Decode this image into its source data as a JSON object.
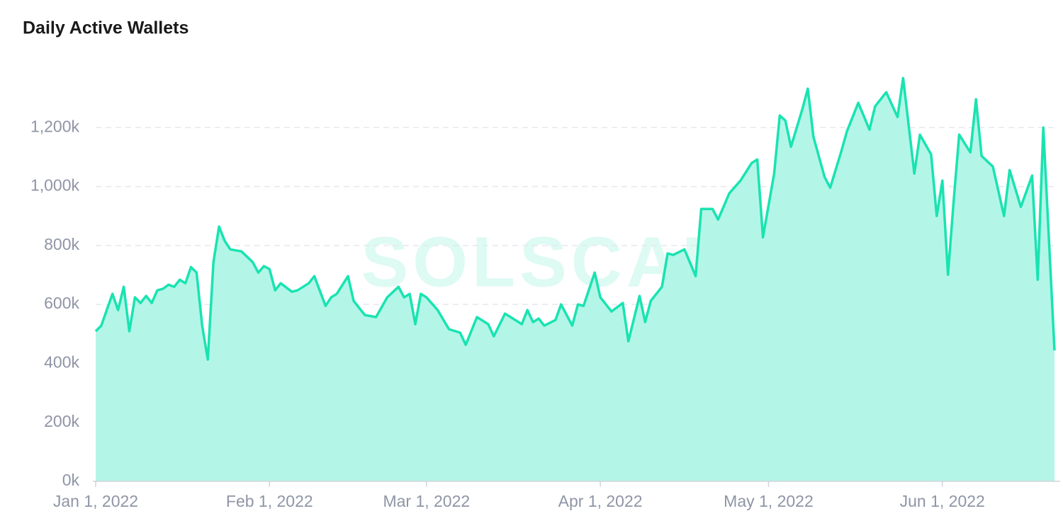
{
  "chart_data": {
    "type": "area",
    "title": "Daily Active Wallets",
    "watermark": "SOLSCAN",
    "x": [
      0,
      1,
      3,
      4,
      5,
      6,
      7,
      8,
      9,
      10,
      11,
      12,
      13,
      14,
      15,
      16,
      17,
      18,
      19,
      20,
      21,
      22,
      23,
      24,
      26,
      28,
      29,
      30,
      31,
      32,
      33,
      35,
      36,
      37,
      38,
      39,
      41,
      42,
      43,
      45,
      46,
      48,
      50,
      52,
      54,
      55,
      56,
      57,
      58,
      59,
      61,
      63,
      65,
      66,
      68,
      70,
      71,
      73,
      74,
      76,
      77,
      78,
      79,
      80,
      82,
      83,
      85,
      86,
      87,
      89,
      90,
      92,
      94,
      95,
      97,
      98,
      99,
      101,
      102,
      103,
      105,
      107,
      108,
      110,
      111,
      113,
      115,
      117,
      118,
      119,
      121,
      122,
      123,
      124,
      126,
      127,
      128,
      130,
      131,
      133,
      134,
      136,
      138,
      139,
      141,
      143,
      144,
      146,
      147,
      149,
      150,
      151,
      152,
      153,
      154,
      156,
      157,
      158,
      160,
      162,
      163,
      165,
      167,
      168,
      169,
      171
    ],
    "values": [
      509000,
      528000,
      636000,
      581000,
      660000,
      509000,
      624000,
      605000,
      629000,
      605000,
      648000,
      653000,
      667000,
      660000,
      684000,
      672000,
      727000,
      708000,
      528000,
      413000,
      744000,
      864000,
      816000,
      787000,
      780000,
      744000,
      708000,
      730000,
      720000,
      648000,
      672000,
      643000,
      648000,
      660000,
      672000,
      696000,
      595000,
      624000,
      636000,
      696000,
      612000,
      564000,
      557000,
      624000,
      660000,
      624000,
      636000,
      533000,
      636000,
      624000,
      581000,
      516000,
      504000,
      463000,
      557000,
      533000,
      492000,
      569000,
      557000,
      533000,
      581000,
      540000,
      552000,
      528000,
      547000,
      600000,
      528000,
      600000,
      595000,
      708000,
      624000,
      576000,
      605000,
      475000,
      629000,
      540000,
      612000,
      660000,
      773000,
      768000,
      787000,
      696000,
      924000,
      924000,
      888000,
      977000,
      1020000,
      1080000,
      1092000,
      828000,
      1044000,
      1241000,
      1224000,
      1135000,
      1260000,
      1332000,
      1169000,
      1032000,
      996000,
      1121000,
      1188000,
      1284000,
      1193000,
      1272000,
      1320000,
      1236000,
      1368000,
      1044000,
      1176000,
      1109000,
      900000,
      1020000,
      701000,
      948000,
      1176000,
      1116000,
      1296000,
      1104000,
      1068000,
      900000,
      1056000,
      931000,
      1037000,
      684000,
      1200000,
      444000
    ],
    "xlim": [
      0,
      171
    ],
    "xticks": [
      {
        "value": 0,
        "label": "Jan 1, 2022"
      },
      {
        "value": 31,
        "label": "Feb 1, 2022"
      },
      {
        "value": 59,
        "label": "Mar 1, 2022"
      },
      {
        "value": 90,
        "label": "Apr 1, 2022"
      },
      {
        "value": 120,
        "label": "May 1, 2022"
      },
      {
        "value": 151,
        "label": "Jun 1, 2022"
      }
    ],
    "ylim": [
      0,
      1400000
    ],
    "yticks": [
      {
        "value": 0,
        "label": "0k"
      },
      {
        "value": 200000,
        "label": "200k"
      },
      {
        "value": 400000,
        "label": "400k"
      },
      {
        "value": 600000,
        "label": "600k"
      },
      {
        "value": 800000,
        "label": "800k"
      },
      {
        "value": 1000000,
        "label": "1,000k"
      },
      {
        "value": 1200000,
        "label": "1,200k"
      }
    ],
    "color": "#19e3b1",
    "fill_color": "#b3f6e7",
    "grid": true
  }
}
